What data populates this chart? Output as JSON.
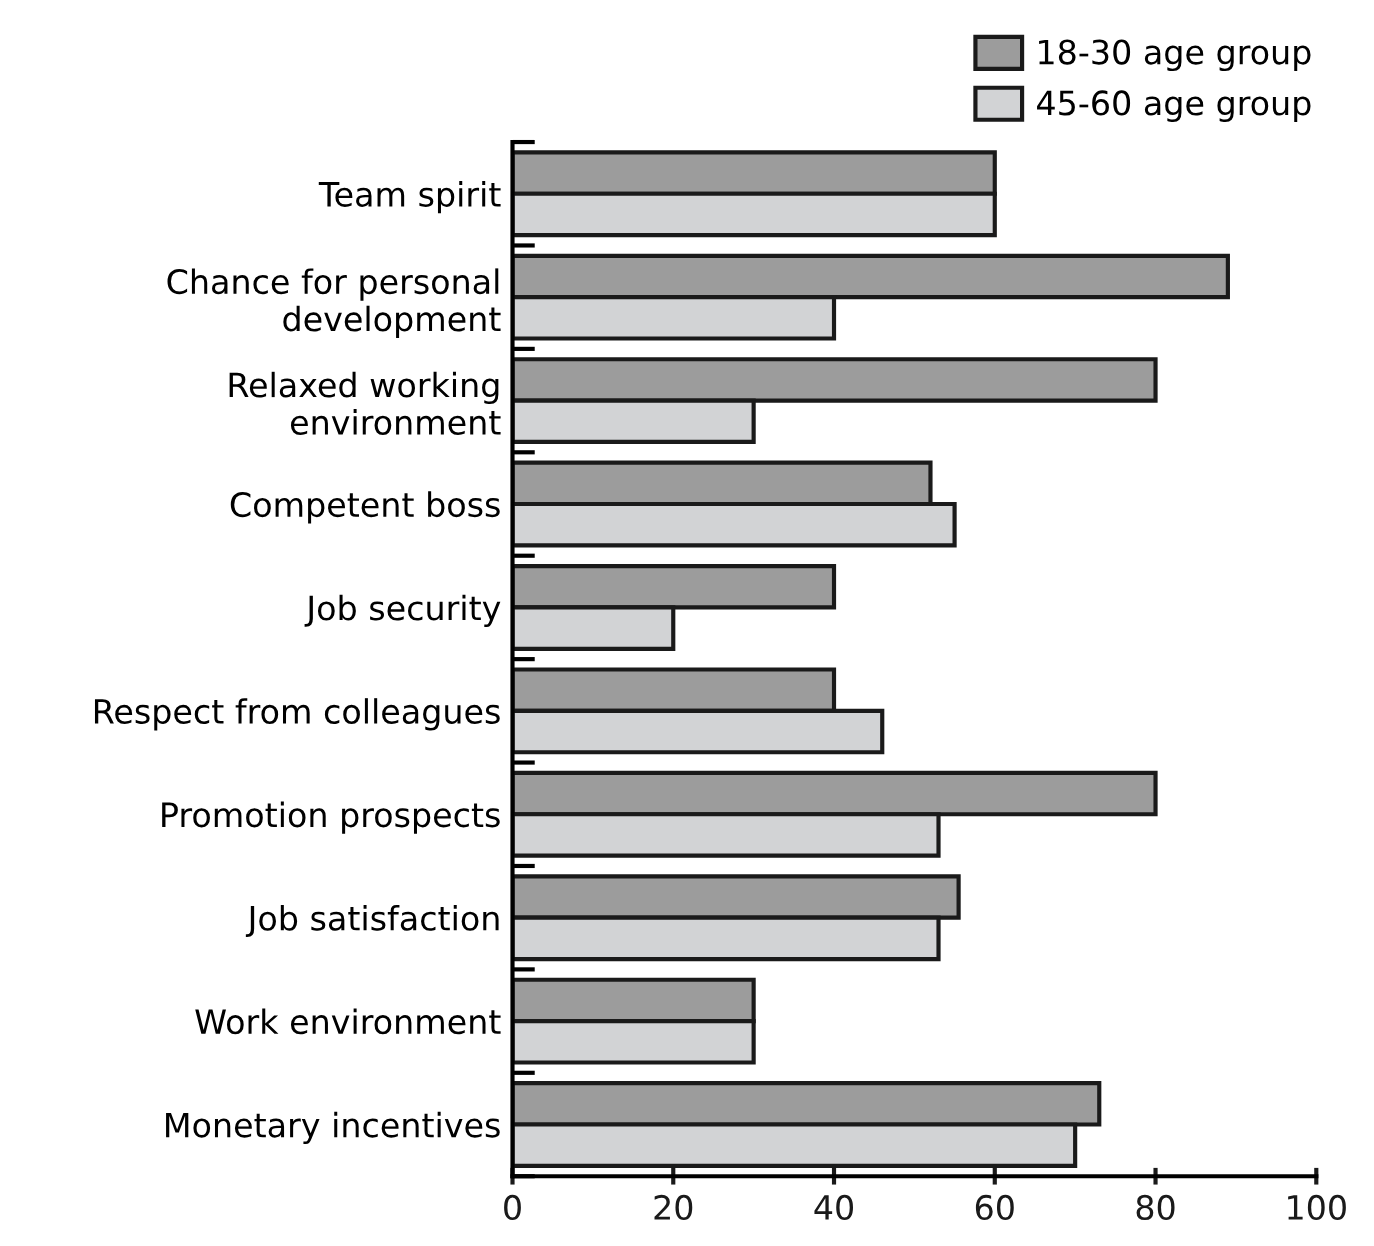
{
  "chart_data": {
    "type": "bar",
    "orientation": "horizontal",
    "categories": [
      "Team spirit",
      "Chance for personal\ndevelopment",
      "Relaxed working\nenvironment",
      "Competent boss",
      "Job security",
      "Respect from colleagues",
      "Promotion prospects",
      "Job satisfaction",
      "Work environment",
      "Monetary incentives"
    ],
    "series": [
      {
        "name": "18-30 age group",
        "color": "#9c9c9c",
        "values": [
          60,
          89,
          80,
          52,
          40,
          40,
          80,
          55.5,
          30,
          73
        ]
      },
      {
        "name": "45-60 age group",
        "color": "#d2d3d5",
        "values": [
          60,
          40,
          30,
          55,
          20,
          46,
          53,
          53,
          30,
          70
        ]
      }
    ],
    "xlim": [
      0,
      100
    ],
    "xticks": [
      0,
      20,
      40,
      60,
      80,
      100
    ],
    "grid": false,
    "legend": "top right"
  }
}
